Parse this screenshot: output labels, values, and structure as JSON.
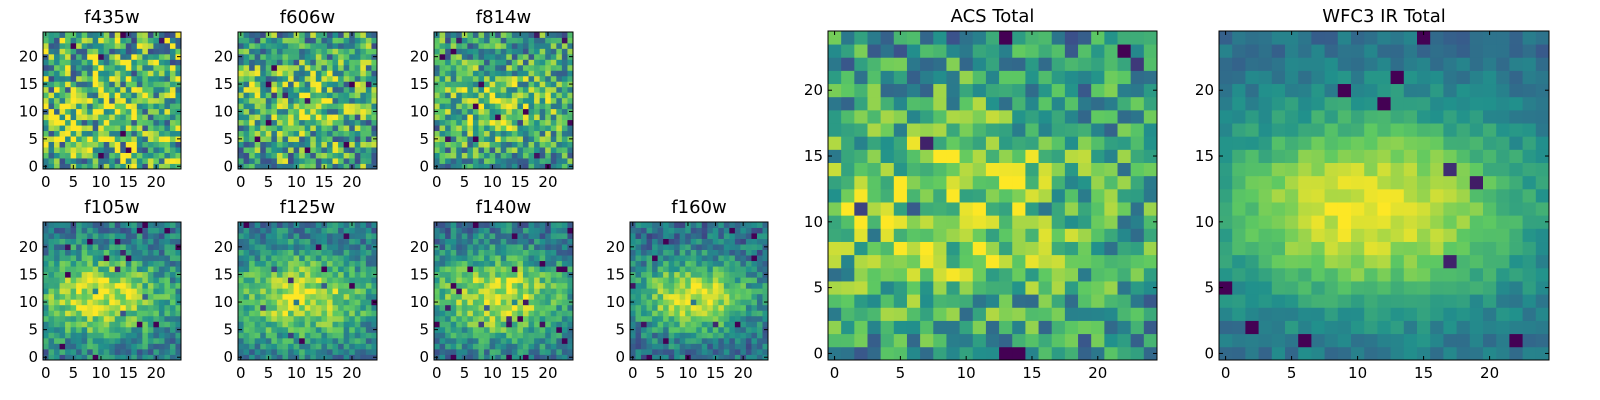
{
  "chart_data": {
    "type": "heatmap",
    "colormap": [
      "#440154",
      "#3b528b",
      "#21918c",
      "#5ec962",
      "#fde725"
    ],
    "panels": [
      {
        "id": "f435w",
        "title": "f435w",
        "grid": 25,
        "xticks": [
          0,
          5,
          10,
          15,
          20
        ],
        "yticks": [
          0,
          5,
          10,
          15,
          20
        ],
        "pattern": {
          "noise": 0.85,
          "base": 0.62,
          "center": [
            11,
            10
          ],
          "sigma": 6,
          "amp": 0.1,
          "seed": 11
        }
      },
      {
        "id": "f606w",
        "title": "f606w",
        "grid": 25,
        "xticks": [
          0,
          5,
          10,
          15,
          20
        ],
        "yticks": [
          0,
          5,
          10,
          15,
          20
        ],
        "pattern": {
          "noise": 0.75,
          "base": 0.58,
          "center": [
            10,
            11
          ],
          "sigma": 5,
          "amp": 0.18,
          "seed": 23
        }
      },
      {
        "id": "f814w",
        "title": "f814w",
        "grid": 25,
        "xticks": [
          0,
          5,
          10,
          15,
          20
        ],
        "yticks": [
          0,
          5,
          10,
          15,
          20
        ],
        "pattern": {
          "noise": 0.65,
          "base": 0.55,
          "center": [
            11,
            11
          ],
          "sigma": 5,
          "amp": 0.25,
          "seed": 37
        }
      },
      {
        "id": "f105w",
        "title": "f105w",
        "grid": 25,
        "xticks": [
          0,
          5,
          10,
          15,
          20
        ],
        "yticks": [
          0,
          5,
          10,
          15,
          20
        ],
        "pattern": {
          "noise": 0.4,
          "base": 0.38,
          "center": [
            10,
            11
          ],
          "sigma": 6,
          "amp": 0.55,
          "seed": 41
        }
      },
      {
        "id": "f125w",
        "title": "f125w",
        "grid": 25,
        "xticks": [
          0,
          5,
          10,
          15,
          20
        ],
        "yticks": [
          0,
          5,
          10,
          15,
          20
        ],
        "pattern": {
          "noise": 0.38,
          "base": 0.4,
          "center": [
            11,
            11
          ],
          "sigma": 6,
          "amp": 0.52,
          "seed": 53
        }
      },
      {
        "id": "f140w",
        "title": "f140w",
        "grid": 25,
        "xticks": [
          0,
          5,
          10,
          15,
          20
        ],
        "yticks": [
          0,
          5,
          10,
          15,
          20
        ],
        "pattern": {
          "noise": 0.38,
          "base": 0.38,
          "center": [
            11,
            11
          ],
          "sigma": 6,
          "amp": 0.55,
          "seed": 67
        }
      },
      {
        "id": "f160w",
        "title": "f160w",
        "grid": 25,
        "xticks": [
          0,
          5,
          10,
          15,
          20
        ],
        "yticks": [
          0,
          5,
          10,
          15,
          20
        ],
        "pattern": {
          "noise": 0.36,
          "base": 0.36,
          "center": [
            11,
            11
          ],
          "sigma": 5,
          "amp": 0.6,
          "seed": 79
        }
      },
      {
        "id": "acs-total",
        "title": "ACS Total",
        "grid": 25,
        "xticks": [
          0,
          5,
          10,
          15,
          20
        ],
        "yticks": [
          0,
          5,
          10,
          15,
          20
        ],
        "pattern": {
          "noise": 0.55,
          "base": 0.5,
          "center": [
            9,
            11
          ],
          "sigma": 6,
          "amp": 0.35,
          "seed": 97
        }
      },
      {
        "id": "wfc3-ir-total",
        "title": "WFC3 IR Total",
        "grid": 25,
        "xticks": [
          0,
          5,
          10,
          15,
          20
        ],
        "yticks": [
          0,
          5,
          10,
          15,
          20
        ],
        "pattern": {
          "noise": 0.16,
          "base": 0.34,
          "center": [
            11,
            11
          ],
          "sigma": 6,
          "amp": 0.64,
          "seed": 113
        }
      }
    ]
  }
}
